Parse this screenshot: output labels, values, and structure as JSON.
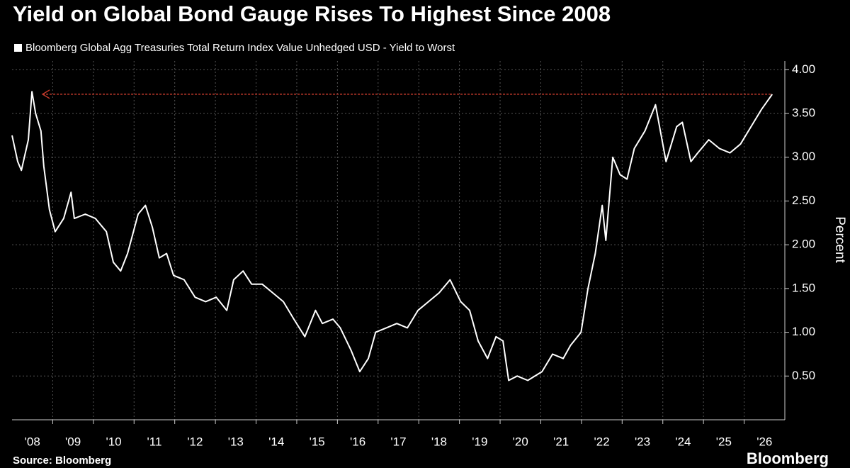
{
  "chart_data": {
    "type": "line",
    "title": "Yield on Global Bond Gauge Rises To Highest Since 2008",
    "legend_label": "Bloomberg Global Agg Treasuries Total Return Index Value Unhedged USD - Yield to Worst",
    "y_label": "Percent",
    "source": "Source: Bloomberg",
    "logo": "Bloomberg",
    "x": [
      2008.0,
      2008.14,
      2008.23,
      2008.4,
      2008.49,
      2008.58,
      2008.71,
      2008.78,
      2008.92,
      2009.06,
      2009.27,
      2009.45,
      2009.53,
      2009.8,
      2010.05,
      2010.32,
      2010.49,
      2010.67,
      2010.84,
      2011.1,
      2011.28,
      2011.45,
      2011.62,
      2011.8,
      2011.97,
      2012.23,
      2012.5,
      2012.76,
      2013.02,
      2013.28,
      2013.45,
      2013.68,
      2013.89,
      2014.15,
      2014.41,
      2014.67,
      2014.93,
      2015.2,
      2015.46,
      2015.63,
      2015.89,
      2016.07,
      2016.33,
      2016.55,
      2016.76,
      2016.94,
      2017.2,
      2017.46,
      2017.72,
      2017.98,
      2018.24,
      2018.5,
      2018.77,
      2019.03,
      2019.25,
      2019.46,
      2019.69,
      2019.9,
      2020.07,
      2020.21,
      2020.42,
      2020.68,
      2021.03,
      2021.29,
      2021.55,
      2021.73,
      2021.99,
      2022.16,
      2022.34,
      2022.51,
      2022.6,
      2022.77,
      2022.95,
      2023.12,
      2023.3,
      2023.56,
      2023.82,
      2024.08,
      2024.34,
      2024.48,
      2024.69,
      2024.86,
      2025.13,
      2025.39,
      2025.65,
      2025.91,
      2026.17,
      2026.43,
      2026.69
    ],
    "series": [
      {
        "name": "Bloomberg Global Agg Treasuries Total Return Index Value Unhedged USD - Yield to Worst",
        "color": "#ffffff",
        "values": [
          3.25,
          2.95,
          2.85,
          3.2,
          3.75,
          3.5,
          3.3,
          2.9,
          2.4,
          2.15,
          2.3,
          2.6,
          2.3,
          2.35,
          2.3,
          2.15,
          1.8,
          1.7,
          1.9,
          2.35,
          2.45,
          2.2,
          1.85,
          1.9,
          1.65,
          1.6,
          1.4,
          1.35,
          1.4,
          1.25,
          1.6,
          1.7,
          1.55,
          1.55,
          1.45,
          1.35,
          1.15,
          0.95,
          1.25,
          1.1,
          1.15,
          1.05,
          0.8,
          0.55,
          0.7,
          1.0,
          1.05,
          1.1,
          1.05,
          1.25,
          1.35,
          1.45,
          1.6,
          1.35,
          1.25,
          0.9,
          0.7,
          0.95,
          0.9,
          0.45,
          0.5,
          0.45,
          0.55,
          0.75,
          0.7,
          0.85,
          1.0,
          1.5,
          1.9,
          2.45,
          2.05,
          3.0,
          2.8,
          2.75,
          3.1,
          3.3,
          3.6,
          2.95,
          3.35,
          3.4,
          2.95,
          3.05,
          3.2,
          3.1,
          3.05,
          3.15,
          3.35,
          3.55,
          3.72
        ]
      }
    ],
    "reference_line": {
      "value": 3.72,
      "from": 2008.75,
      "to": 2026.69,
      "color": "#c0392b"
    },
    "xlim": [
      2008,
      2027
    ],
    "xticks": [
      {
        "value": 2008.5,
        "label": "'08"
      },
      {
        "value": 2009.5,
        "label": "'09"
      },
      {
        "value": 2010.5,
        "label": "'10"
      },
      {
        "value": 2011.5,
        "label": "'11"
      },
      {
        "value": 2012.5,
        "label": "'12"
      },
      {
        "value": 2013.5,
        "label": "'13"
      },
      {
        "value": 2014.5,
        "label": "'14"
      },
      {
        "value": 2015.5,
        "label": "'15"
      },
      {
        "value": 2016.5,
        "label": "'16"
      },
      {
        "value": 2017.5,
        "label": "'17"
      },
      {
        "value": 2018.5,
        "label": "'18"
      },
      {
        "value": 2019.5,
        "label": "'19"
      },
      {
        "value": 2020.5,
        "label": "'20"
      },
      {
        "value": 2021.5,
        "label": "'21"
      },
      {
        "value": 2022.5,
        "label": "'22"
      },
      {
        "value": 2023.5,
        "label": "'23"
      },
      {
        "value": 2024.5,
        "label": "'24"
      },
      {
        "value": 2025.5,
        "label": "'25"
      },
      {
        "value": 2026.5,
        "label": "'26"
      }
    ],
    "xgrid": [
      2009,
      2010,
      2011,
      2012,
      2013,
      2014,
      2015,
      2016,
      2017,
      2018,
      2019,
      2020,
      2021,
      2022,
      2023,
      2024,
      2025,
      2026
    ],
    "ylim": [
      0,
      4.1
    ],
    "yticks": [
      {
        "value": 0.5,
        "label": "0.50"
      },
      {
        "value": 1,
        "label": "1.00"
      },
      {
        "value": 1.5,
        "label": "1.50"
      },
      {
        "value": 2,
        "label": "2.00"
      },
      {
        "value": 2.5,
        "label": "2.50"
      },
      {
        "value": 3,
        "label": "3.00"
      },
      {
        "value": 3.5,
        "label": "3.50"
      },
      {
        "value": 4,
        "label": "4.00"
      }
    ],
    "grid": true
  }
}
